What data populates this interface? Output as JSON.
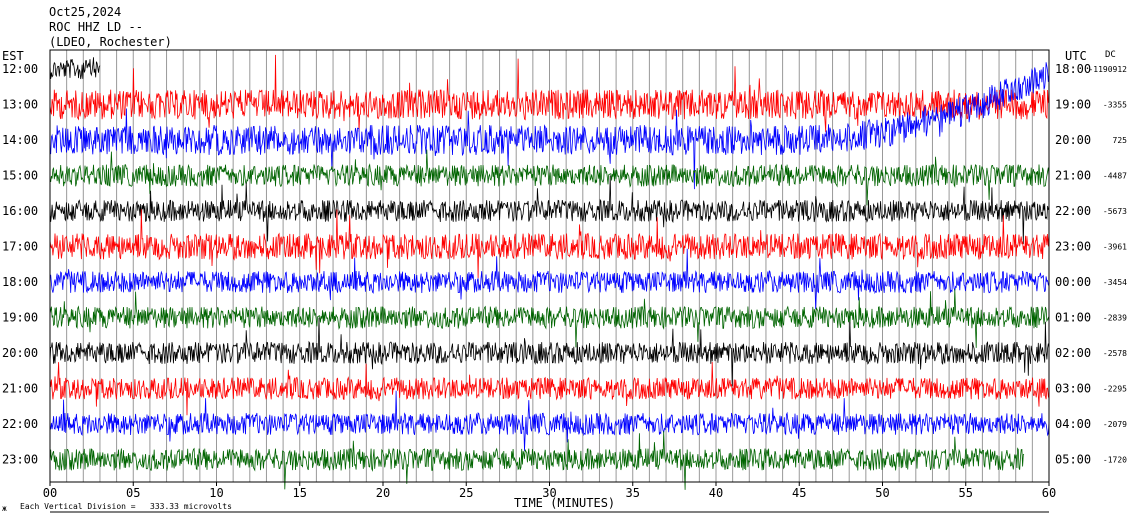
{
  "header": {
    "date": "Oct25,2024",
    "station": "ROC HHZ LD --",
    "network": "(LDEO, Rochester)"
  },
  "axes": {
    "left_tz": "EST",
    "right_tz": "UTC",
    "dc_label": "DC",
    "xlabel": "TIME (MINUTES)",
    "scale_note": "Each Vertical Division =   333.33 microvolts",
    "corner_mark": "ж"
  },
  "chart_data": {
    "type": "line",
    "title": "Oct25,2024",
    "xlabel": "TIME (MINUTES)",
    "ylabel": "",
    "xlim": [
      0,
      60
    ],
    "x_ticks": [
      "00",
      "05",
      "10",
      "15",
      "20",
      "25",
      "30",
      "35",
      "40",
      "45",
      "50",
      "55",
      "60"
    ],
    "grid": "vertical every minute",
    "color_cycle": [
      "#000000",
      "#ff0000",
      "#0000ff",
      "#006400"
    ],
    "rows": [
      {
        "est": "12:00",
        "utc": "18:00",
        "dc": "-1190912",
        "color": "#000000",
        "amplitude": "partial"
      },
      {
        "est": "13:00",
        "utc": "19:00",
        "dc": "-3355",
        "color": "#ff0000",
        "amplitude": "high"
      },
      {
        "est": "14:00",
        "utc": "20:00",
        "dc": "725",
        "color": "#0000ff",
        "amplitude": "high, drifting upward"
      },
      {
        "est": "15:00",
        "utc": "21:00",
        "dc": "-4487",
        "color": "#006400",
        "amplitude": "medium"
      },
      {
        "est": "16:00",
        "utc": "22:00",
        "dc": "-5673",
        "color": "#000000",
        "amplitude": "medium"
      },
      {
        "est": "17:00",
        "utc": "23:00",
        "dc": "-3961",
        "color": "#ff0000",
        "amplitude": "medium-high"
      },
      {
        "est": "18:00",
        "utc": "00:00",
        "dc": "-3454",
        "color": "#0000ff",
        "amplitude": "medium"
      },
      {
        "est": "19:00",
        "utc": "01:00",
        "dc": "-2839",
        "color": "#006400",
        "amplitude": "medium"
      },
      {
        "est": "20:00",
        "utc": "02:00",
        "dc": "-2578",
        "color": "#000000",
        "amplitude": "medium"
      },
      {
        "est": "21:00",
        "utc": "03:00",
        "dc": "-2295",
        "color": "#ff0000",
        "amplitude": "medium"
      },
      {
        "est": "22:00",
        "utc": "04:00",
        "dc": "-2079",
        "color": "#0000ff",
        "amplitude": "medium"
      },
      {
        "est": "23:00",
        "utc": "05:00",
        "dc": "-1720",
        "color": "#006400",
        "amplitude": "medium, partial"
      }
    ]
  }
}
